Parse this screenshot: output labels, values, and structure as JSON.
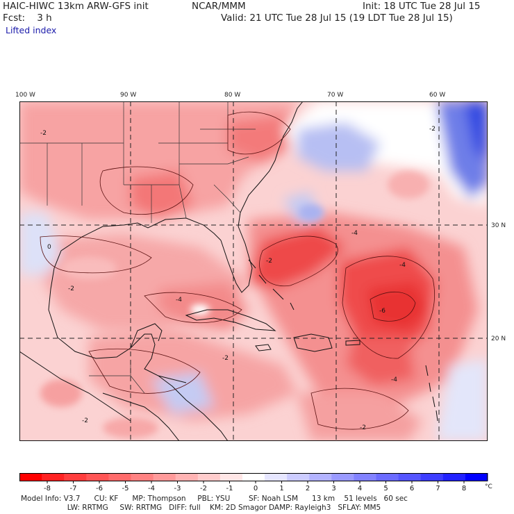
{
  "header": {
    "model": "HAIC-HIWC 13km ARW-GFS init",
    "org": "NCAR/MMM",
    "init": "Init: 18 UTC Tue 28 Jul 15",
    "fcst": "Fcst:    3 h",
    "valid": "Valid: 21 UTC Tue 28 Jul 15 (19 LDT Tue 28 Jul 15)",
    "field": "Lifted index"
  },
  "map": {
    "lon_labels": [
      "100 W",
      "90 W",
      "80 W",
      "70 W",
      "60 W"
    ],
    "lat_labels": [
      "30 N",
      "20 N"
    ],
    "contour_labels": [
      "-2",
      "-2",
      "-2",
      "-2",
      "-4",
      "-4",
      "-4",
      "-4",
      "-6",
      "-2",
      "-2",
      "0",
      "-2"
    ],
    "colors": {
      "deep_negative": "#ee2a2a",
      "negative": "#f58c8c",
      "slightly_negative": "#fcd4d4",
      "near_zero": "#ffffff",
      "positive": "#9aa4ee",
      "strong_positive": "#2b3fe0"
    }
  },
  "colorbar": {
    "ticks": [
      "-8",
      "-7",
      "-6",
      "-5",
      "-4",
      "-3",
      "-2",
      "-1",
      "0",
      "1",
      "2",
      "3",
      "4",
      "5",
      "6",
      "7",
      "8"
    ],
    "unit": "°C",
    "colors": [
      "#ff0000",
      "#ff2222",
      "#ff3d3d",
      "#ff5555",
      "#ff6b6b",
      "#ff8282",
      "#ff9a9a",
      "#ffb3b3",
      "#ffcccc",
      "#ffe6e6",
      "#ffffff",
      "#e6e6ff",
      "#ccccff",
      "#b3b3ff",
      "#9a9aff",
      "#8282ff",
      "#6b6bff",
      "#5555ff",
      "#3d3dff",
      "#2222ff",
      "#0000ff"
    ]
  },
  "footer": {
    "line1": "Model Info: V3.7      CU: KF      MP: Thompson     PBL: YSU        SF: Noah LSM      13 km    51 levels   60 sec",
    "line2": "                    LW: RRTMG     SW: RRTMG   DIFF: full    KM: 2D Smagor DAMP: Rayleigh3   SFLAY: MM5"
  }
}
